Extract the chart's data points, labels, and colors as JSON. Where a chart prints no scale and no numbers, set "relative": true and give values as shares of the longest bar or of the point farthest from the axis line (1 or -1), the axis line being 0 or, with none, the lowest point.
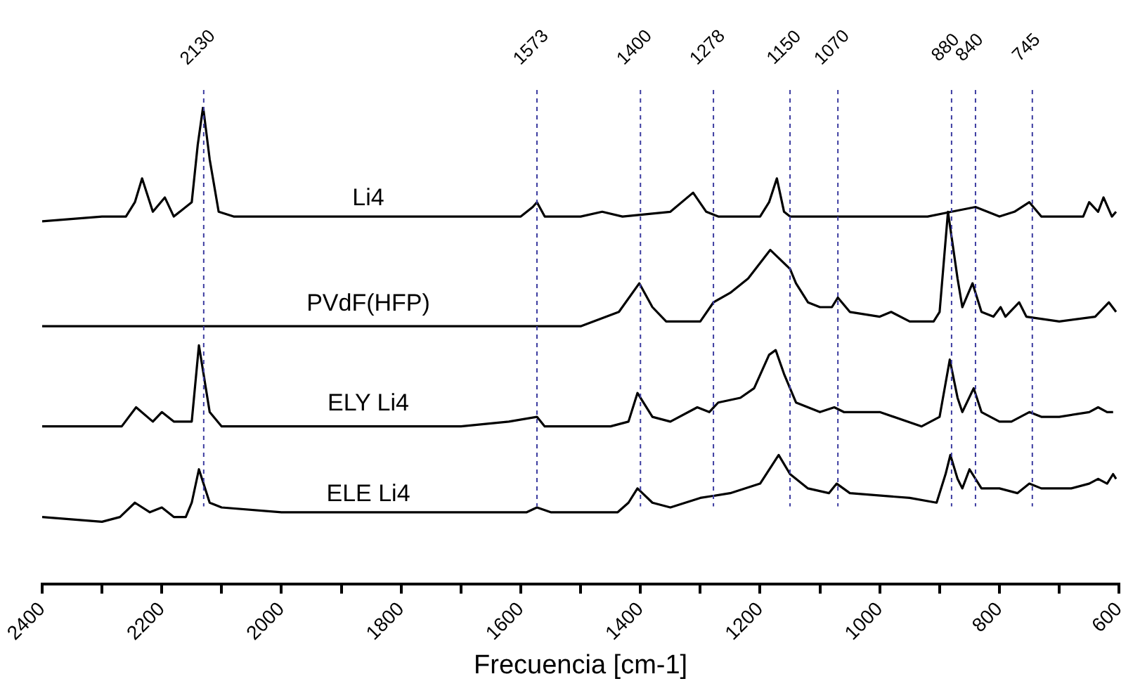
{
  "chart_data": {
    "type": "line",
    "relative": true,
    "xlabel": "Frecuencia [cm-1]",
    "xlim": [
      2400,
      600
    ],
    "xticks": [
      2400,
      {
        "value": 2300,
        "label": null
      },
      2200,
      {
        "value": 2100,
        "label": null
      },
      2000,
      {
        "value": 1900,
        "label": null
      },
      1800,
      {
        "value": 1700,
        "label": null
      },
      1600,
      {
        "value": 1500,
        "label": null
      },
      1400,
      {
        "value": 1300,
        "label": null
      },
      1200,
      {
        "value": 1100,
        "label": null
      },
      1000,
      {
        "value": 900,
        "label": null
      },
      800,
      {
        "value": 700,
        "label": null
      },
      600
    ],
    "grid": false,
    "legend": false,
    "marker": "none",
    "line_style": "solid",
    "series": [
      {
        "name": "Li4",
        "color": "#000000",
        "x": [
          2400,
          2300,
          2260,
          2245,
          2233,
          2215,
          2195,
          2180,
          2150,
          2140,
          2131,
          2120,
          2105,
          2080,
          1600,
          1580,
          1573,
          1560,
          1500,
          1464,
          1430,
          1350,
          1312,
          1290,
          1270,
          1200,
          1185,
          1172,
          1160,
          1150,
          1100,
          1000,
          920,
          880,
          840,
          800,
          775,
          750,
          730,
          700,
          660,
          650,
          635,
          626,
          612,
          605
        ],
        "values": [
          0.76,
          0.77,
          0.77,
          0.8,
          0.85,
          0.78,
          0.81,
          0.77,
          0.8,
          0.92,
          1.0,
          0.89,
          0.78,
          0.77,
          0.77,
          0.79,
          0.8,
          0.77,
          0.77,
          0.78,
          0.77,
          0.78,
          0.82,
          0.78,
          0.77,
          0.77,
          0.8,
          0.85,
          0.78,
          0.77,
          0.77,
          0.77,
          0.77,
          0.78,
          0.79,
          0.77,
          0.78,
          0.8,
          0.77,
          0.77,
          0.77,
          0.8,
          0.78,
          0.81,
          0.77,
          0.78
        ]
      },
      {
        "name": "PVdF(HFP)",
        "color": "#000000",
        "x": [
          2400,
          1500,
          1436,
          1402,
          1380,
          1357,
          1300,
          1278,
          1250,
          1220,
          1183,
          1150,
          1140,
          1120,
          1100,
          1080,
          1070,
          1050,
          1000,
          981,
          950,
          910,
          900,
          886,
          870,
          862,
          845,
          830,
          810,
          798,
          790,
          767,
          755,
          700,
          640,
          617,
          605
        ],
        "values": [
          0.54,
          0.54,
          0.57,
          0.63,
          0.58,
          0.55,
          0.55,
          0.59,
          0.61,
          0.64,
          0.7,
          0.66,
          0.63,
          0.59,
          0.58,
          0.58,
          0.6,
          0.57,
          0.56,
          0.57,
          0.55,
          0.55,
          0.57,
          0.78,
          0.64,
          0.58,
          0.63,
          0.57,
          0.56,
          0.58,
          0.56,
          0.59,
          0.56,
          0.55,
          0.56,
          0.59,
          0.57
        ]
      },
      {
        "name": "ELY Li4",
        "color": "#000000",
        "x": [
          2400,
          2300,
          2267,
          2243,
          2215,
          2200,
          2180,
          2150,
          2138,
          2120,
          2100,
          2000,
          1700,
          1620,
          1573,
          1560,
          1450,
          1420,
          1405,
          1380,
          1350,
          1305,
          1285,
          1270,
          1233,
          1210,
          1185,
          1174,
          1160,
          1140,
          1100,
          1076,
          1060,
          1000,
          930,
          900,
          883,
          870,
          862,
          843,
          830,
          800,
          780,
          750,
          730,
          700,
          650,
          635,
          620,
          610
        ],
        "values": [
          0.33,
          0.33,
          0.33,
          0.37,
          0.34,
          0.36,
          0.34,
          0.34,
          0.5,
          0.36,
          0.33,
          0.33,
          0.33,
          0.34,
          0.35,
          0.33,
          0.33,
          0.34,
          0.4,
          0.35,
          0.34,
          0.37,
          0.36,
          0.38,
          0.39,
          0.41,
          0.48,
          0.49,
          0.44,
          0.38,
          0.36,
          0.37,
          0.36,
          0.36,
          0.33,
          0.35,
          0.47,
          0.39,
          0.36,
          0.41,
          0.36,
          0.34,
          0.34,
          0.36,
          0.35,
          0.35,
          0.36,
          0.37,
          0.36,
          0.36
        ]
      },
      {
        "name": "ELE Li4",
        "color": "#000000",
        "x": [
          2400,
          2300,
          2270,
          2245,
          2220,
          2200,
          2180,
          2160,
          2150,
          2138,
          2120,
          2100,
          2000,
          1800,
          1650,
          1590,
          1573,
          1550,
          1450,
          1438,
          1420,
          1405,
          1380,
          1350,
          1300,
          1250,
          1200,
          1169,
          1150,
          1120,
          1085,
          1072,
          1050,
          950,
          905,
          890,
          882,
          870,
          862,
          850,
          830,
          800,
          770,
          750,
          730,
          680,
          650,
          635,
          620,
          610,
          605
        ],
        "values": [
          0.14,
          0.13,
          0.14,
          0.17,
          0.15,
          0.16,
          0.14,
          0.14,
          0.17,
          0.24,
          0.17,
          0.16,
          0.15,
          0.15,
          0.15,
          0.15,
          0.16,
          0.15,
          0.15,
          0.15,
          0.17,
          0.2,
          0.17,
          0.16,
          0.18,
          0.19,
          0.21,
          0.27,
          0.23,
          0.2,
          0.19,
          0.21,
          0.19,
          0.18,
          0.17,
          0.23,
          0.27,
          0.22,
          0.2,
          0.24,
          0.2,
          0.2,
          0.19,
          0.21,
          0.2,
          0.2,
          0.21,
          0.22,
          0.21,
          0.23,
          0.22
        ]
      }
    ],
    "ref_lines": [
      {
        "axis": "x",
        "value": 2130,
        "label": "2130",
        "color": "#3c3ca0",
        "line_style": "dashed"
      },
      {
        "axis": "x",
        "value": 1573,
        "label": "1573",
        "color": "#3c3ca0",
        "line_style": "dashed"
      },
      {
        "axis": "x",
        "value": 1400,
        "label": "1400",
        "color": "#3c3ca0",
        "line_style": "dashed"
      },
      {
        "axis": "x",
        "value": 1278,
        "label": "1278",
        "color": "#3c3ca0",
        "line_style": "dashed"
      },
      {
        "axis": "x",
        "value": 1150,
        "label": "1150",
        "color": "#3c3ca0",
        "line_style": "dashed"
      },
      {
        "axis": "x",
        "value": 1070,
        "label": "1070",
        "color": "#3c3ca0",
        "line_style": "dashed"
      },
      {
        "axis": "x",
        "value": 880,
        "label": "880",
        "color": "#3c3ca0",
        "line_style": "dashed"
      },
      {
        "axis": "x",
        "value": 840,
        "label": "840",
        "color": "#3c3ca0",
        "line_style": "dashed"
      },
      {
        "axis": "x",
        "value": 745,
        "label": "745",
        "color": "#3c3ca0",
        "line_style": "dashed"
      }
    ]
  }
}
